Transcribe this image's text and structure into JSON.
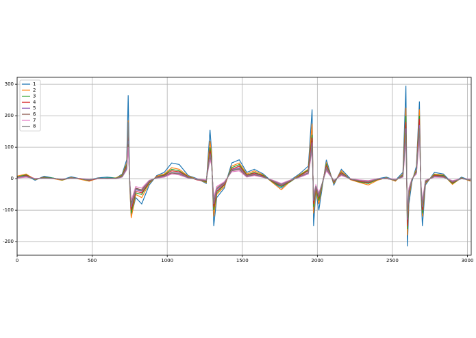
{
  "chart_data": {
    "type": "line",
    "x": [
      0,
      60,
      120,
      180,
      240,
      300,
      360,
      420,
      480,
      540,
      600,
      660,
      700,
      730,
      740,
      750,
      760,
      790,
      830,
      880,
      930,
      980,
      1030,
      1080,
      1140,
      1200,
      1260,
      1285,
      1295,
      1310,
      1330,
      1380,
      1430,
      1480,
      1530,
      1580,
      1640,
      1700,
      1760,
      1820,
      1880,
      1940,
      1965,
      1975,
      1990,
      2010,
      2060,
      2110,
      2160,
      2220,
      2280,
      2340,
      2400,
      2460,
      2520,
      2570,
      2590,
      2600,
      2610,
      2630,
      2660,
      2680,
      2690,
      2700,
      2720,
      2780,
      2840,
      2900,
      2960,
      3020
    ],
    "series": [
      {
        "name": "1",
        "color": "#1f77b4",
        "values": [
          5,
          10,
          -5,
          8,
          2,
          -3,
          6,
          0,
          -4,
          3,
          5,
          2,
          15,
          60,
          265,
          -20,
          -120,
          -60,
          -80,
          -20,
          10,
          20,
          50,
          45,
          10,
          0,
          -15,
          155,
          90,
          -150,
          -60,
          -30,
          50,
          60,
          20,
          30,
          15,
          -10,
          -30,
          -5,
          15,
          40,
          220,
          -150,
          -40,
          -100,
          60,
          -20,
          30,
          0,
          -10,
          -15,
          0,
          5,
          -5,
          20,
          295,
          -215,
          -80,
          -10,
          40,
          245,
          -40,
          -150,
          -20,
          20,
          15,
          -15,
          5,
          -5
        ]
      },
      {
        "name": "2",
        "color": "#ff7f0e",
        "values": [
          8,
          15,
          -3,
          5,
          0,
          -5,
          4,
          -2,
          -8,
          2,
          0,
          3,
          12,
          50,
          185,
          -15,
          -125,
          -50,
          -60,
          -15,
          8,
          15,
          35,
          30,
          8,
          -2,
          -12,
          120,
          80,
          -120,
          -50,
          -25,
          40,
          50,
          15,
          25,
          12,
          -12,
          -35,
          -8,
          12,
          30,
          175,
          -110,
          -35,
          -80,
          50,
          -15,
          25,
          -3,
          -12,
          -20,
          -5,
          3,
          -8,
          15,
          225,
          -180,
          -60,
          -5,
          30,
          220,
          -30,
          -120,
          -15,
          15,
          12,
          -18,
          3,
          -8
        ]
      },
      {
        "name": "3",
        "color": "#2ca02c",
        "values": [
          6,
          12,
          -2,
          4,
          2,
          -4,
          3,
          0,
          -6,
          1,
          2,
          2,
          10,
          45,
          150,
          -10,
          -110,
          -45,
          -50,
          -12,
          6,
          12,
          30,
          25,
          6,
          -3,
          -10,
          100,
          70,
          -100,
          -45,
          -20,
          35,
          45,
          12,
          20,
          10,
          -10,
          -25,
          -10,
          10,
          28,
          140,
          -90,
          -30,
          -70,
          45,
          -12,
          20,
          -2,
          -10,
          -15,
          -3,
          2,
          -6,
          12,
          200,
          -160,
          -50,
          -4,
          25,
          200,
          -25,
          -110,
          -12,
          12,
          10,
          -15,
          2,
          -6
        ]
      },
      {
        "name": "4",
        "color": "#d62728",
        "values": [
          4,
          10,
          0,
          3,
          1,
          -3,
          2,
          1,
          -5,
          0,
          1,
          1,
          8,
          40,
          140,
          -8,
          -100,
          -40,
          -45,
          -10,
          5,
          10,
          25,
          22,
          5,
          -4,
          -8,
          90,
          60,
          -90,
          -40,
          -18,
          30,
          40,
          10,
          18,
          8,
          -8,
          -22,
          -8,
          8,
          25,
          130,
          -80,
          -28,
          -60,
          40,
          -10,
          18,
          -2,
          -8,
          -12,
          -2,
          1,
          -5,
          10,
          180,
          -150,
          -45,
          -3,
          22,
          190,
          -22,
          -100,
          -10,
          10,
          8,
          -12,
          1,
          -5
        ]
      },
      {
        "name": "5",
        "color": "#9467bd",
        "values": [
          5,
          8,
          -1,
          2,
          0,
          -2,
          2,
          0,
          -4,
          1,
          0,
          1,
          7,
          35,
          120,
          -5,
          -90,
          -35,
          -40,
          -8,
          4,
          8,
          20,
          18,
          4,
          -3,
          -6,
          80,
          55,
          -80,
          -35,
          -15,
          28,
          35,
          8,
          15,
          6,
          -6,
          -20,
          -6,
          6,
          20,
          115,
          -70,
          -25,
          -55,
          35,
          -8,
          15,
          -1,
          -6,
          -10,
          -1,
          0,
          -4,
          8,
          160,
          -130,
          -40,
          -2,
          20,
          170,
          -20,
          -90,
          -8,
          8,
          6,
          -10,
          0,
          -4
        ]
      },
      {
        "name": "6",
        "color": "#8c564b",
        "values": [
          3,
          6,
          0,
          2,
          1,
          -2,
          1,
          0,
          -3,
          0,
          1,
          0,
          6,
          30,
          110,
          -4,
          -80,
          -30,
          -35,
          -6,
          3,
          6,
          18,
          15,
          3,
          -2,
          -5,
          70,
          50,
          -70,
          -30,
          -12,
          25,
          30,
          6,
          12,
          5,
          -5,
          -18,
          -5,
          5,
          18,
          100,
          -60,
          -22,
          -50,
          30,
          -6,
          12,
          0,
          -5,
          -8,
          0,
          0,
          -3,
          6,
          140,
          -120,
          -35,
          -1,
          18,
          150,
          -18,
          -80,
          -6,
          6,
          5,
          -8,
          1,
          -3
        ]
      },
      {
        "name": "7",
        "color": "#e377c2",
        "values": [
          2,
          5,
          1,
          1,
          0,
          -1,
          1,
          1,
          -2,
          0,
          0,
          0,
          5,
          28,
          100,
          -3,
          -70,
          -25,
          -30,
          -5,
          2,
          5,
          15,
          12,
          2,
          -1,
          -4,
          60,
          45,
          -60,
          -25,
          -10,
          22,
          25,
          5,
          10,
          4,
          -4,
          -15,
          -4,
          4,
          15,
          90,
          -50,
          -20,
          -45,
          25,
          -5,
          10,
          0,
          -4,
          -6,
          0,
          1,
          -2,
          5,
          120,
          -100,
          -30,
          0,
          15,
          130,
          -15,
          -70,
          -5,
          5,
          4,
          -6,
          0,
          -2
        ]
      },
      {
        "name": "8",
        "color": "#7f7f7f",
        "values": [
          4,
          7,
          -1,
          2,
          1,
          -2,
          2,
          0,
          -3,
          1,
          1,
          1,
          6,
          32,
          180,
          -6,
          -85,
          -32,
          -38,
          -7,
          3,
          7,
          20,
          16,
          3,
          -2,
          -6,
          75,
          52,
          -75,
          -32,
          -14,
          26,
          32,
          7,
          14,
          5,
          -6,
          -18,
          -6,
          6,
          18,
          105,
          -65,
          -24,
          -52,
          32,
          -7,
          14,
          -1,
          -6,
          -10,
          -1,
          0,
          -4,
          7,
          145,
          -125,
          -38,
          -2,
          20,
          160,
          -18,
          -85,
          -7,
          7,
          5,
          -9,
          0,
          -4
        ]
      }
    ],
    "xlim": [
      0,
      3025
    ],
    "ylim": [
      -243,
      322
    ],
    "xticks": [
      0,
      500,
      1000,
      1500,
      2000,
      2500,
      3000
    ],
    "yticks": [
      -200,
      -100,
      0,
      100,
      200,
      300
    ],
    "grid": true,
    "legend": "upper left"
  }
}
